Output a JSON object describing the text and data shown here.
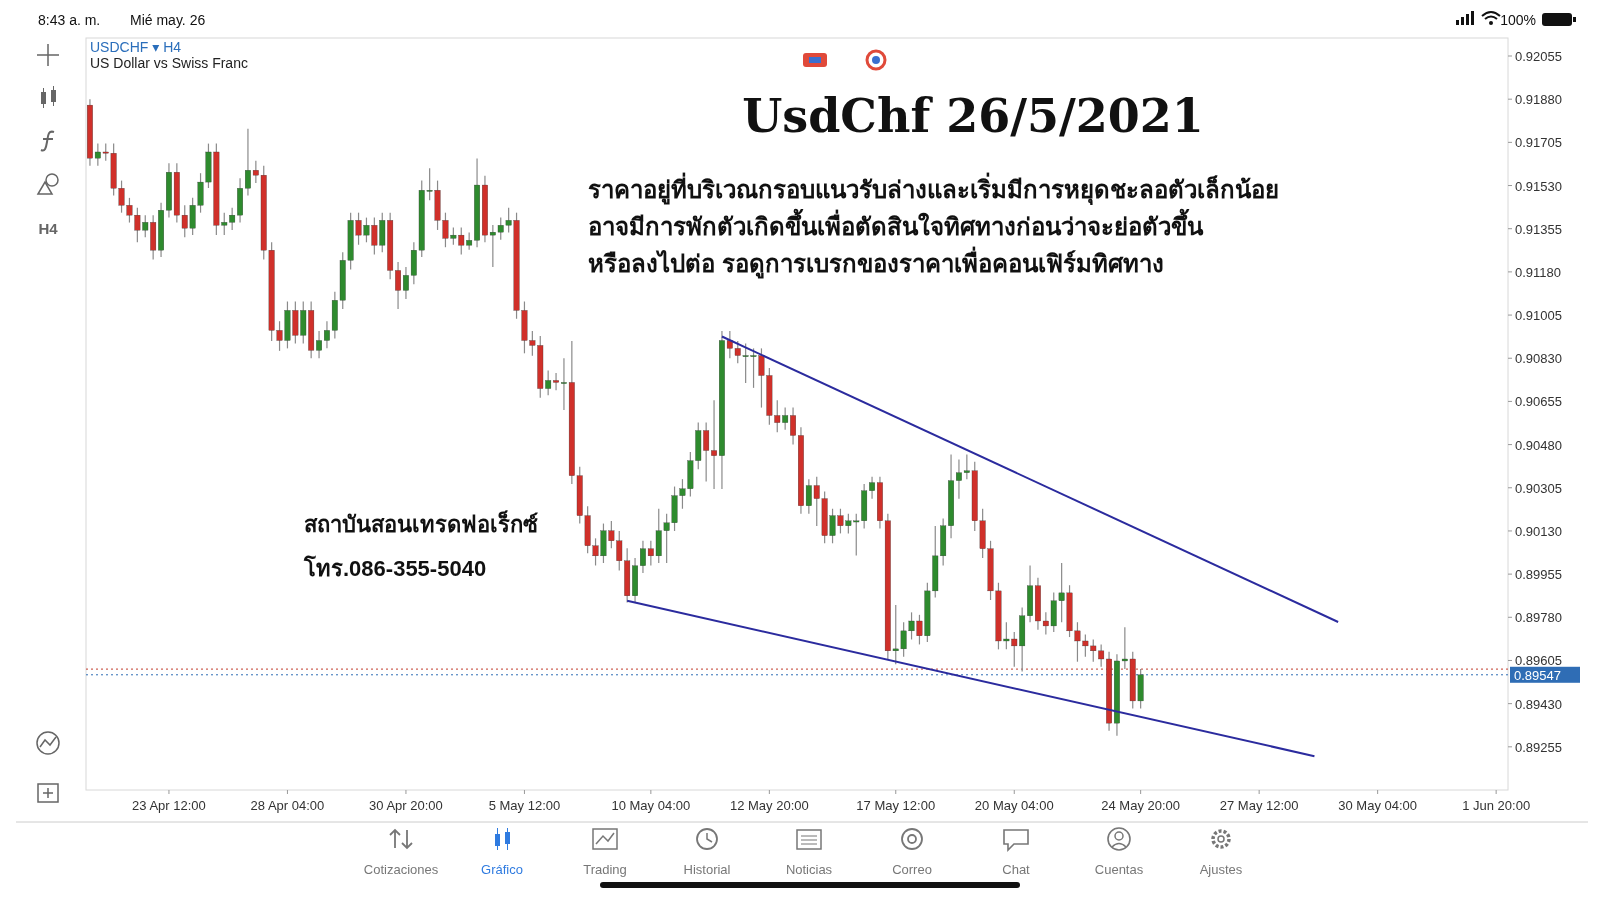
{
  "chart_data": {
    "type": "candlestick",
    "title": "UsdChf 26/5/2021",
    "subtitle": "US Dollar vs Swiss Franc",
    "annotations": [
      "USDCHF ▾ H4",
      "ราคาอยู่ที่บริเวณกรอบแนวรับล่างและเริ่มมีการหยุดชะลอตัวเล็กน้อย",
      "อาจมีการพักตัวเกิดขึ้นเพื่อตัดสินใจทิศทางก่อนว่าจะย่อตัวขึ้น",
      "หรือลงไปต่อ รอดูการเบรกของราคาเพื่อคอนเฟิร์มทิศทาง",
      "สถาบันสอนเทรดฟอเร็กซ์",
      "โทร.086-355-5040",
      "8:43 a. m.",
      "Mié may. 26",
      "100%",
      "H4",
      "Cotizaciones",
      "Gráfico",
      "Trading",
      "Historial",
      "Noticias",
      "Correo",
      "Chat",
      "Cuentas",
      "Ajustes"
    ],
    "categories": [
      null,
      null,
      null,
      null,
      null,
      null,
      null,
      null,
      null,
      null,
      "23 Apr 12:00",
      null,
      null,
      null,
      null,
      null,
      null,
      null,
      null,
      null,
      null,
      null,
      null,
      null,
      null,
      "28 Apr 04:00",
      null,
      null,
      null,
      null,
      null,
      null,
      null,
      null,
      null,
      null,
      null,
      null,
      null,
      null,
      "30 Apr 20:00",
      null,
      null,
      null,
      null,
      null,
      null,
      null,
      null,
      null,
      null,
      null,
      null,
      null,
      null,
      "5 May 12:00",
      null,
      null,
      null,
      null,
      null,
      null,
      null,
      null,
      null,
      null,
      null,
      null,
      null,
      null,
      null,
      "10 May 04:00",
      null,
      null,
      null,
      null,
      null,
      null,
      null,
      null,
      null,
      null,
      null,
      null,
      null,
      null,
      "12 May 20:00",
      null,
      null,
      null,
      null,
      null,
      null,
      null,
      null,
      null,
      null,
      null,
      null,
      null,
      null,
      null,
      "17 May 12:00",
      null,
      null,
      null,
      null,
      null,
      null,
      null,
      null,
      null,
      null,
      null,
      null,
      null,
      null,
      "20 May 04:00",
      null,
      null,
      null,
      null,
      null,
      null,
      null,
      null,
      null,
      null,
      null,
      null,
      null,
      null,
      null,
      "24 May 20:00",
      null,
      null,
      null,
      null,
      null,
      null,
      null,
      null,
      null,
      null,
      null,
      null,
      null,
      null,
      "27 May 12:00",
      null,
      null,
      null,
      null,
      null,
      null,
      null,
      null,
      null,
      null,
      null,
      null,
      null,
      null,
      "30 May 04:00",
      null,
      null,
      null,
      null,
      null,
      null,
      null,
      null,
      null,
      null,
      null,
      null,
      null,
      null,
      "1 Jun 20:00",
      null
    ],
    "colors": [
      "#d0302a",
      "#2e8b2e",
      "#d0302a",
      "#d0302a",
      "#d0302a",
      "#d0302a",
      "#d0302a",
      "#2e8b2e",
      "#d0302a",
      "#2e8b2e",
      "#2e8b2e",
      "#d0302a",
      "#d0302a",
      "#2e8b2e",
      "#2e8b2e",
      "#2e8b2e",
      "#d0302a",
      "#2e8b2e",
      "#2e8b2e",
      "#2e8b2e",
      "#2e8b2e",
      "#d0302a",
      "#d0302a",
      "#d0302a",
      "#d0302a",
      "#2e8b2e",
      "#d0302a",
      "#2e8b2e",
      "#d0302a",
      "#2e8b2e",
      "#2e8b2e",
      "#2e8b2e",
      "#2e8b2e",
      "#2e8b2e",
      "#d0302a",
      "#2e8b2e",
      "#d0302a",
      "#2e8b2e",
      "#d0302a",
      "#d0302a",
      "#2e8b2e",
      "#2e8b2e",
      "#2e8b2e",
      "#2e8b2e",
      "#d0302a",
      "#d0302a",
      "#2e8b2e",
      "#d0302a",
      "#2e8b2e",
      "#2e8b2e",
      "#d0302a",
      "#2e8b2e",
      "#2e8b2e",
      "#2e8b2e",
      "#d0302a",
      "#d0302a",
      "#d0302a",
      "#d0302a",
      "#2e8b2e",
      "#d0302a",
      "#2e8b2e",
      "#d0302a",
      "#d0302a",
      "#d0302a",
      "#d0302a",
      "#2e8b2e",
      "#d0302a",
      "#d0302a",
      "#d0302a",
      "#2e8b2e",
      "#2e8b2e",
      "#d0302a",
      "#2e8b2e",
      "#2e8b2e",
      "#2e8b2e",
      "#2e8b2e",
      "#2e8b2e",
      "#2e8b2e",
      "#d0302a",
      "#d0302a",
      "#2e8b2e",
      "#d0302a",
      "#d0302a",
      "#2e8b2e",
      "#2e8b2e",
      "#d0302a",
      "#d0302a",
      "#d0302a",
      "#2e8b2e",
      "#d0302a",
      "#d0302a",
      "#2e8b2e",
      "#d0302a",
      "#d0302a",
      "#2e8b2e",
      "#d0302a",
      "#2e8b2e",
      "#2e8b2e",
      "#2e8b2e",
      "#2e8b2e",
      "#d0302a",
      "#d0302a",
      "#2e8b2e",
      "#2e8b2e",
      "#2e8b2e",
      "#d0302a",
      "#2e8b2e",
      "#2e8b2e",
      "#2e8b2e",
      "#2e8b2e",
      "#2e8b2e",
      "#2e8b2e",
      "#d0302a",
      "#d0302a",
      "#d0302a",
      "#d0302a",
      "#2e8b2e",
      "#d0302a",
      "#2e8b2e",
      "#2e8b2e",
      "#d0302a",
      "#d0302a",
      "#2e8b2e",
      "#2e8b2e",
      "#d0302a",
      "#d0302a",
      "#d0302a",
      "#d0302a",
      "#d0302a",
      "#d0302a",
      "#2e8b2e",
      "#2e8b2e",
      "#d0302a",
      "#2e8b2e",
      null,
      null,
      null,
      null,
      null,
      null,
      null,
      null,
      null,
      null,
      null,
      null,
      null,
      null,
      null,
      null,
      null,
      null,
      null,
      null,
      null,
      null,
      null,
      null,
      null,
      null,
      null,
      null,
      null,
      null,
      null,
      null,
      null,
      null,
      null,
      null,
      null,
      null,
      null,
      null,
      null,
      null,
      null,
      null,
      null,
      null
    ],
    "ylim": [
      0.8908,
      0.92128
    ],
    "yticks": [
      0.92055,
      {
        "value": 0.9188,
        "label": "0.91880"
      },
      0.91705,
      {
        "value": 0.9153,
        "label": "0.91530"
      },
      0.91355,
      {
        "value": 0.9118,
        "label": "0.91180"
      },
      0.91005,
      {
        "value": 0.9083,
        "label": "0.90830"
      },
      0.90655,
      {
        "value": 0.9048,
        "label": "0.90480"
      },
      0.90305,
      {
        "value": 0.9013,
        "label": "0.90130"
      },
      0.89955,
      {
        "value": 0.8978,
        "label": "0.89780"
      },
      0.89605,
      {
        "value": 0.8943,
        "label": "0.89430"
      },
      0.89255
    ],
    "ref_lines": [
      {
        "axis": "y",
        "value": 0.8957,
        "color": "#c0392b",
        "line_style": "dotted"
      },
      {
        "axis": "y",
        "value": 0.89547,
        "label": "0.89547",
        "color": "#2f6db5",
        "line_style": "dotted"
      }
    ],
    "series": [
      {
        "type": "line",
        "color": "#2b2b9e",
        "values": [
          null,
          null,
          null,
          null,
          null,
          null,
          null,
          null,
          null,
          null,
          null,
          null,
          null,
          null,
          null,
          null,
          null,
          null,
          null,
          null,
          null,
          null,
          null,
          null,
          null,
          null,
          null,
          null,
          null,
          null,
          null,
          null,
          null,
          null,
          null,
          null,
          null,
          null,
          null,
          null,
          null,
          null,
          null,
          null,
          null,
          null,
          null,
          null,
          null,
          null,
          null,
          null,
          null,
          null,
          null,
          null,
          null,
          null,
          null,
          null,
          null,
          null,
          null,
          null,
          null,
          null,
          null,
          null,
          null,
          null,
          null,
          null,
          null,
          null,
          null,
          null,
          null,
          null,
          null,
          null,
          0.90918,
          null,
          null,
          null,
          null,
          null,
          null,
          null,
          null,
          null,
          null,
          null,
          null,
          null,
          null,
          null,
          null,
          null,
          null,
          null,
          null,
          null,
          null,
          null,
          null,
          null,
          null,
          null,
          null,
          null,
          null,
          null,
          null,
          null,
          null,
          null,
          null,
          null,
          null,
          null,
          null,
          null,
          null,
          null,
          null,
          null,
          null,
          null,
          null,
          null,
          null,
          null,
          null,
          null,
          null,
          null,
          null,
          null,
          null,
          null,
          null,
          null,
          null,
          null,
          null,
          null,
          null,
          null,
          null,
          null,
          null,
          null,
          null,
          null,
          null,
          null,
          null,
          null,
          0.89761,
          null,
          null,
          null,
          null,
          null,
          null,
          null,
          null,
          null,
          null,
          null,
          null,
          null,
          null,
          null,
          null,
          null,
          null,
          null,
          null,
          null
        ]
      },
      {
        "type": "line",
        "color": "#2b2b9e",
        "values": [
          null,
          null,
          null,
          null,
          null,
          null,
          null,
          null,
          null,
          null,
          null,
          null,
          null,
          null,
          null,
          null,
          null,
          null,
          null,
          null,
          null,
          null,
          null,
          null,
          null,
          null,
          null,
          null,
          null,
          null,
          null,
          null,
          null,
          null,
          null,
          null,
          null,
          null,
          null,
          null,
          null,
          null,
          null,
          null,
          null,
          null,
          null,
          null,
          null,
          null,
          null,
          null,
          null,
          null,
          null,
          null,
          null,
          null,
          null,
          null,
          null,
          null,
          null,
          null,
          null,
          null,
          null,
          null,
          0.89847,
          null,
          null,
          null,
          null,
          null,
          null,
          null,
          null,
          null,
          null,
          null,
          null,
          null,
          null,
          null,
          null,
          null,
          null,
          null,
          null,
          null,
          null,
          null,
          null,
          null,
          null,
          null,
          null,
          null,
          null,
          null,
          null,
          null,
          null,
          null,
          null,
          null,
          null,
          null,
          null,
          null,
          null,
          null,
          null,
          null,
          null,
          null,
          null,
          null,
          null,
          null,
          null,
          null,
          null,
          null,
          null,
          null,
          null,
          null,
          null,
          null,
          null,
          null,
          null,
          null,
          null,
          null,
          null,
          null,
          null,
          null,
          null,
          null,
          null,
          null,
          null,
          null,
          null,
          null,
          null,
          null,
          null,
          null,
          null,
          null,
          null,
          0.89217,
          null,
          null,
          null,
          null,
          null,
          null,
          null,
          null,
          null,
          null,
          null,
          null,
          null,
          null,
          null,
          null,
          null,
          null,
          null,
          null,
          null,
          null,
          null,
          null
        ]
      }
    ],
    "ohlc": [
      [
        0.91856,
        0.9188,
        0.9161,
        0.91641
      ],
      [
        0.91641,
        0.917,
        0.9161,
        0.91666
      ],
      [
        0.91666,
        0.917,
        0.9163,
        0.91661
      ],
      [
        0.91661,
        0.917,
        0.9149,
        0.91519
      ],
      [
        0.91519,
        0.9155,
        0.9142,
        0.9145
      ],
      [
        0.9145,
        0.9148,
        0.9138,
        0.9141
      ],
      [
        0.9141,
        0.9144,
        0.913,
        0.91349
      ],
      [
        0.91349,
        0.9141,
        0.9132,
        0.91381
      ],
      [
        0.91381,
        0.9141,
        0.9123,
        0.91268
      ],
      [
        0.91268,
        0.9146,
        0.9124,
        0.9143
      ],
      [
        0.9143,
        0.9162,
        0.914,
        0.91584
      ],
      [
        0.91584,
        0.9162,
        0.9138,
        0.9141
      ],
      [
        0.9141,
        0.9145,
        0.9132,
        0.91357
      ],
      [
        0.91357,
        0.9148,
        0.9133,
        0.9145
      ],
      [
        0.9145,
        0.9158,
        0.9142,
        0.91544
      ],
      [
        0.91544,
        0.917,
        0.9152,
        0.91666
      ],
      [
        0.91666,
        0.917,
        0.9133,
        0.91369
      ],
      [
        0.91369,
        0.9142,
        0.9133,
        0.91381
      ],
      [
        0.91381,
        0.9144,
        0.9135,
        0.9141
      ],
      [
        0.9141,
        0.9156,
        0.9138,
        0.91519
      ],
      [
        0.91519,
        0.9176,
        0.9149,
        0.91592
      ],
      [
        0.91592,
        0.9163,
        0.9154,
        0.91572
      ],
      [
        0.91572,
        0.9161,
        0.9123,
        0.91268
      ],
      [
        0.91268,
        0.913,
        0.909,
        0.90943
      ],
      [
        0.90943,
        0.9098,
        0.9086,
        0.90902
      ],
      [
        0.90902,
        0.9106,
        0.9087,
        0.91024
      ],
      [
        0.91024,
        0.9106,
        0.9089,
        0.90923
      ],
      [
        0.90923,
        0.9106,
        0.9089,
        0.91024
      ],
      [
        0.91024,
        0.9106,
        0.9083,
        0.90862
      ],
      [
        0.90862,
        0.9094,
        0.9083,
        0.90902
      ],
      [
        0.90902,
        0.9098,
        0.9087,
        0.90943
      ],
      [
        0.90943,
        0.911,
        0.9091,
        0.91065
      ],
      [
        0.91065,
        0.9126,
        0.9103,
        0.91227
      ],
      [
        0.91227,
        0.9142,
        0.9119,
        0.91389
      ],
      [
        0.91389,
        0.9142,
        0.9129,
        0.91329
      ],
      [
        0.91329,
        0.914,
        0.913,
        0.91369
      ],
      [
        0.91369,
        0.914,
        0.9125,
        0.91288
      ],
      [
        0.91288,
        0.9142,
        0.9126,
        0.91389
      ],
      [
        0.91389,
        0.9142,
        0.9115,
        0.91186
      ],
      [
        0.91186,
        0.9122,
        0.9103,
        0.91105
      ],
      [
        0.91105,
        0.912,
        0.9107,
        0.91166
      ],
      [
        0.91166,
        0.913,
        0.9113,
        0.91268
      ],
      [
        0.91268,
        0.9155,
        0.9124,
        0.91511
      ],
      [
        0.91511,
        0.916,
        0.9147,
        0.91511
      ],
      [
        0.91511,
        0.9155,
        0.9135,
        0.91389
      ],
      [
        0.91389,
        0.9142,
        0.9128,
        0.91316
      ],
      [
        0.91316,
        0.9136,
        0.9129,
        0.91329
      ],
      [
        0.91329,
        0.9136,
        0.9125,
        0.91288
      ],
      [
        0.91288,
        0.9134,
        0.9127,
        0.91308
      ],
      [
        0.91308,
        0.9164,
        0.9128,
        0.91532
      ],
      [
        0.91532,
        0.9157,
        0.913,
        0.91329
      ],
      [
        0.91329,
        0.9137,
        0.912,
        0.91341
      ],
      [
        0.91341,
        0.914,
        0.9131,
        0.91369
      ],
      [
        0.91369,
        0.9144,
        0.9134,
        0.91389
      ],
      [
        0.91389,
        0.9142,
        0.9099,
        0.91024
      ],
      [
        0.91024,
        0.9106,
        0.9085,
        0.90902
      ],
      [
        0.90902,
        0.9094,
        0.9084,
        0.90882
      ],
      [
        0.90882,
        0.9092,
        0.9067,
        0.90707
      ],
      [
        0.90707,
        0.9078,
        0.9068,
        0.9074
      ],
      [
        0.9074,
        0.9077,
        0.907,
        0.90732
      ],
      [
        0.90732,
        0.9083,
        0.9062,
        0.90732
      ],
      [
        0.90732,
        0.909,
        0.9032,
        0.90354
      ],
      [
        0.90354,
        0.9039,
        0.9016,
        0.90192
      ],
      [
        0.90192,
        0.9023,
        0.9004,
        0.9007
      ],
      [
        0.9007,
        0.901,
        0.8999,
        0.90029
      ],
      [
        0.90029,
        0.9016,
        0.9,
        0.90131
      ],
      [
        0.90131,
        0.9017,
        0.9006,
        0.9009
      ],
      [
        0.9009,
        0.9013,
        0.8997,
        0.90009
      ],
      [
        0.90009,
        0.9006,
        0.8984,
        0.89867
      ],
      [
        0.89867,
        0.9002,
        0.8984,
        0.89989
      ],
      [
        0.89989,
        0.9009,
        0.8996,
        0.90058
      ],
      [
        0.90058,
        0.9009,
        0.8999,
        0.90029
      ],
      [
        0.90029,
        0.9022,
        0.9,
        0.90131
      ],
      [
        0.90131,
        0.902,
        0.9,
        0.90163
      ],
      [
        0.90163,
        0.9031,
        0.9013,
        0.90273
      ],
      [
        0.90273,
        0.9034,
        0.9022,
        0.90301
      ],
      [
        0.90301,
        0.9045,
        0.9027,
        0.90415
      ],
      [
        0.90415,
        0.9057,
        0.9038,
        0.90537
      ],
      [
        0.90537,
        0.9057,
        0.9033,
        0.90456
      ],
      [
        0.90456,
        0.9066,
        0.903,
        0.90435
      ],
      [
        0.90435,
        0.9094,
        0.903,
        0.90902
      ],
      [
        0.90902,
        0.9094,
        0.9083,
        0.9087
      ],
      [
        0.9087,
        0.909,
        0.9081,
        0.90841
      ],
      [
        0.90841,
        0.9089,
        0.9073,
        0.90841
      ],
      [
        0.90841,
        0.9087,
        0.9071,
        0.90841
      ],
      [
        0.90841,
        0.9087,
        0.9063,
        0.9076
      ],
      [
        0.9076,
        0.9079,
        0.9056,
        0.90598
      ],
      [
        0.90598,
        0.9066,
        0.9053,
        0.90569
      ],
      [
        0.90569,
        0.9063,
        0.9054,
        0.90598
      ],
      [
        0.90598,
        0.9063,
        0.9048,
        0.90517
      ],
      [
        0.90517,
        0.9055,
        0.902,
        0.90232
      ],
      [
        0.90232,
        0.9034,
        0.902,
        0.90314
      ],
      [
        0.90314,
        0.9035,
        0.9015,
        0.90261
      ],
      [
        0.90261,
        0.9029,
        0.9008,
        0.90111
      ],
      [
        0.90111,
        0.9022,
        0.9008,
        0.90192
      ],
      [
        0.90192,
        0.9022,
        0.9012,
        0.90151
      ],
      [
        0.90151,
        0.902,
        0.9012,
        0.90171
      ],
      [
        0.90171,
        0.902,
        0.9003,
        0.90171
      ],
      [
        0.90171,
        0.9032,
        0.9014,
        0.90293
      ],
      [
        0.90293,
        0.9035,
        0.9026,
        0.90326
      ],
      [
        0.90326,
        0.9035,
        0.9014,
        0.90171
      ],
      [
        0.90171,
        0.902,
        0.8961,
        0.89644
      ],
      [
        0.89644,
        0.8983,
        0.8959,
        0.89652
      ],
      [
        0.89652,
        0.8976,
        0.8962,
        0.89725
      ],
      [
        0.89725,
        0.898,
        0.8969,
        0.89765
      ],
      [
        0.89765,
        0.8979,
        0.8967,
        0.89705
      ],
      [
        0.89705,
        0.8992,
        0.8968,
        0.89887
      ],
      [
        0.89887,
        0.9015,
        0.8986,
        0.90029
      ],
      [
        0.90029,
        0.9018,
        0.8999,
        0.90151
      ],
      [
        0.90151,
        0.9044,
        0.901,
        0.90334
      ],
      [
        0.90334,
        0.9042,
        0.9026,
        0.90366
      ],
      [
        0.90366,
        0.9044,
        0.9034,
        0.90374
      ],
      [
        0.90374,
        0.9041,
        0.9013,
        0.90171
      ],
      [
        0.90171,
        0.9022,
        0.9002,
        0.90058
      ],
      [
        0.90058,
        0.9009,
        0.8985,
        0.89887
      ],
      [
        0.89887,
        0.8992,
        0.8965,
        0.89684
      ],
      [
        0.89684,
        0.8976,
        0.8965,
        0.89692
      ],
      [
        0.89692,
        0.8972,
        0.8958,
        0.89664
      ],
      [
        0.89664,
        0.8982,
        0.8956,
        0.89786
      ],
      [
        0.89786,
        0.8999,
        0.8976,
        0.89908
      ],
      [
        0.89908,
        0.8994,
        0.8973,
        0.89765
      ],
      [
        0.89765,
        0.898,
        0.8971,
        0.89745
      ],
      [
        0.89745,
        0.8988,
        0.8972,
        0.89847
      ],
      [
        0.89847,
        0.9,
        0.8976,
        0.89879
      ],
      [
        0.89879,
        0.8991,
        0.897,
        0.89725
      ],
      [
        0.89725,
        0.8976,
        0.896,
        0.89684
      ],
      [
        0.89684,
        0.8971,
        0.8962,
        0.89664
      ],
      [
        0.89664,
        0.8969,
        0.896,
        0.89644
      ],
      [
        0.89644,
        0.8967,
        0.8958,
        0.89611
      ],
      [
        0.89611,
        0.8964,
        0.8932,
        0.89351
      ],
      [
        0.89351,
        0.8963,
        0.893,
        0.89603
      ],
      [
        0.89603,
        0.8974,
        0.8957,
        0.89611
      ],
      [
        0.89611,
        0.8964,
        0.8941,
        0.89441
      ],
      [
        0.89441,
        0.8957,
        0.8941,
        0.89547
      ],
      null,
      null,
      null,
      null,
      null,
      null,
      null,
      null,
      null,
      null,
      null,
      null,
      null,
      null,
      null,
      null,
      null,
      null,
      null,
      null,
      null,
      null,
      null,
      null,
      null,
      null,
      null,
      null,
      null,
      null,
      null,
      null,
      null,
      null,
      null,
      null,
      null,
      null,
      null,
      null,
      null,
      null,
      null,
      null,
      null,
      null
    ]
  }
}
